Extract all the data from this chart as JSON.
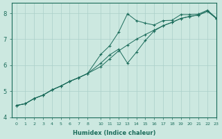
{
  "xlabel": "Humidex (Indice chaleur)",
  "ylabel": "",
  "bg_color": "#cce8e0",
  "grid_color": "#aacfc8",
  "line_color": "#1a6b5a",
  "xlim": [
    -0.5,
    23.5
  ],
  "ylim": [
    4.0,
    8.4
  ],
  "xtick_positions": [
    0,
    1,
    2,
    3,
    4,
    5,
    6,
    7,
    8,
    10,
    11,
    12,
    13,
    14,
    15,
    16,
    17,
    18,
    19,
    20,
    21,
    22,
    23
  ],
  "xtick_labels": [
    "0",
    "1",
    "2",
    "3",
    "4",
    "5",
    "6",
    "7",
    "8",
    "10",
    "11",
    "12",
    "13",
    "14",
    "15",
    "16",
    "17",
    "18",
    "19",
    "20",
    "21",
    "22",
    "23"
  ],
  "yticks": [
    4,
    5,
    6,
    7,
    8
  ],
  "curve1_x": [
    0,
    1,
    2,
    3,
    4,
    5,
    6,
    7,
    8,
    10,
    11,
    12,
    13,
    14,
    15,
    16,
    17,
    18,
    19,
    20,
    21,
    22,
    23
  ],
  "curve1_y": [
    4.45,
    4.52,
    4.72,
    4.85,
    5.05,
    5.2,
    5.38,
    5.52,
    5.68,
    6.42,
    6.75,
    7.27,
    7.98,
    7.72,
    7.62,
    7.55,
    7.72,
    7.73,
    7.95,
    7.95,
    7.97,
    8.12,
    7.82
  ],
  "curve2_x": [
    0,
    1,
    2,
    3,
    4,
    5,
    6,
    7,
    8,
    10,
    11,
    12,
    13,
    14,
    15,
    16,
    17,
    18,
    19,
    20,
    21,
    22,
    23
  ],
  "curve2_y": [
    4.45,
    4.52,
    4.72,
    4.85,
    5.05,
    5.2,
    5.38,
    5.52,
    5.68,
    6.08,
    6.4,
    6.62,
    6.08,
    6.5,
    6.95,
    7.32,
    7.52,
    7.65,
    7.8,
    7.88,
    7.93,
    8.08,
    7.8
  ],
  "curve3_x": [
    0,
    1,
    2,
    3,
    4,
    5,
    6,
    7,
    8,
    10,
    11,
    12,
    13,
    14,
    15,
    16,
    17,
    18,
    19,
    20,
    21,
    22,
    23
  ],
  "curve3_y": [
    4.45,
    4.52,
    4.72,
    4.85,
    5.05,
    5.2,
    5.38,
    5.52,
    5.68,
    5.95,
    6.25,
    6.55,
    6.78,
    7.0,
    7.18,
    7.35,
    7.52,
    7.65,
    7.8,
    7.88,
    7.93,
    8.08,
    7.8
  ]
}
